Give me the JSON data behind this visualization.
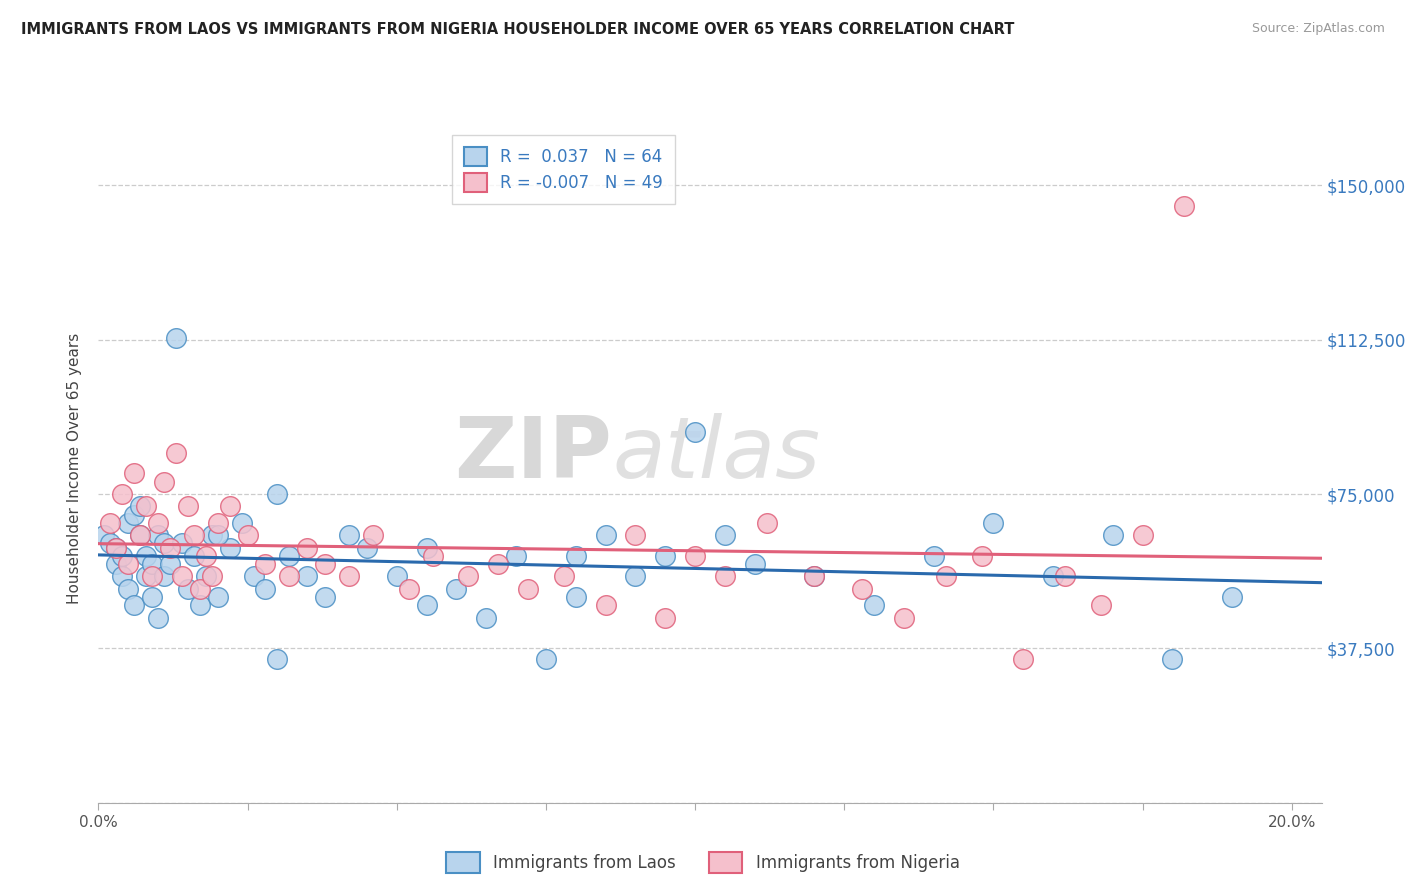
{
  "title": "IMMIGRANTS FROM LAOS VS IMMIGRANTS FROM NIGERIA HOUSEHOLDER INCOME OVER 65 YEARS CORRELATION CHART",
  "source": "Source: ZipAtlas.com",
  "ylabel": "Householder Income Over 65 years",
  "xlim": [
    0.0,
    0.205
  ],
  "ylim": [
    0,
    162500
  ],
  "xtick_positions": [
    0.0,
    0.025,
    0.05,
    0.075,
    0.1,
    0.125,
    0.15,
    0.175,
    0.2
  ],
  "xtick_labels": [
    "0.0%",
    "",
    "",
    "",
    "",
    "",
    "",
    "",
    "20.0%"
  ],
  "yticks": [
    0,
    37500,
    75000,
    112500,
    150000
  ],
  "ytick_labels": [
    "",
    "$37,500",
    "$75,000",
    "$112,500",
    "$150,000"
  ],
  "laos_color": "#b8d4ed",
  "nigeria_color": "#f5c0cc",
  "laos_edge_color": "#4a8fc4",
  "nigeria_edge_color": "#e0607a",
  "laos_line_color": "#2a6aad",
  "nigeria_line_color": "#e0607a",
  "accent_color": "#3a7abf",
  "laos_R": 0.037,
  "laos_N": 64,
  "nigeria_R": -0.007,
  "nigeria_N": 49,
  "grid_color": "#cccccc",
  "laos_x": [
    0.001,
    0.002,
    0.003,
    0.003,
    0.004,
    0.004,
    0.005,
    0.005,
    0.006,
    0.006,
    0.007,
    0.007,
    0.008,
    0.008,
    0.009,
    0.009,
    0.01,
    0.01,
    0.011,
    0.011,
    0.012,
    0.013,
    0.014,
    0.015,
    0.016,
    0.017,
    0.018,
    0.019,
    0.02,
    0.022,
    0.024,
    0.026,
    0.028,
    0.03,
    0.032,
    0.035,
    0.038,
    0.042,
    0.045,
    0.05,
    0.055,
    0.06,
    0.065,
    0.07,
    0.075,
    0.08,
    0.085,
    0.09,
    0.095,
    0.1,
    0.105,
    0.11,
    0.12,
    0.13,
    0.14,
    0.15,
    0.16,
    0.17,
    0.18,
    0.19,
    0.03,
    0.02,
    0.055,
    0.08
  ],
  "laos_y": [
    65000,
    63000,
    62000,
    58000,
    60000,
    55000,
    68000,
    52000,
    70000,
    48000,
    65000,
    72000,
    60000,
    55000,
    58000,
    50000,
    65000,
    45000,
    63000,
    55000,
    58000,
    113000,
    63000,
    52000,
    60000,
    48000,
    55000,
    65000,
    50000,
    62000,
    68000,
    55000,
    52000,
    35000,
    60000,
    55000,
    50000,
    65000,
    62000,
    55000,
    48000,
    52000,
    45000,
    60000,
    35000,
    50000,
    65000,
    55000,
    60000,
    90000,
    65000,
    58000,
    55000,
    48000,
    60000,
    68000,
    55000,
    65000,
    35000,
    50000,
    75000,
    65000,
    62000,
    60000
  ],
  "nigeria_x": [
    0.002,
    0.003,
    0.004,
    0.005,
    0.006,
    0.007,
    0.008,
    0.009,
    0.01,
    0.011,
    0.012,
    0.013,
    0.014,
    0.015,
    0.016,
    0.017,
    0.018,
    0.019,
    0.02,
    0.022,
    0.025,
    0.028,
    0.032,
    0.035,
    0.038,
    0.042,
    0.046,
    0.052,
    0.056,
    0.062,
    0.067,
    0.072,
    0.078,
    0.085,
    0.09,
    0.095,
    0.1,
    0.105,
    0.112,
    0.12,
    0.128,
    0.135,
    0.142,
    0.148,
    0.155,
    0.162,
    0.168,
    0.175,
    0.182
  ],
  "nigeria_y": [
    68000,
    62000,
    75000,
    58000,
    80000,
    65000,
    72000,
    55000,
    68000,
    78000,
    62000,
    85000,
    55000,
    72000,
    65000,
    52000,
    60000,
    55000,
    68000,
    72000,
    65000,
    58000,
    55000,
    62000,
    58000,
    55000,
    65000,
    52000,
    60000,
    55000,
    58000,
    52000,
    55000,
    48000,
    65000,
    45000,
    60000,
    55000,
    68000,
    55000,
    52000,
    45000,
    55000,
    60000,
    35000,
    55000,
    48000,
    65000,
    145000
  ]
}
